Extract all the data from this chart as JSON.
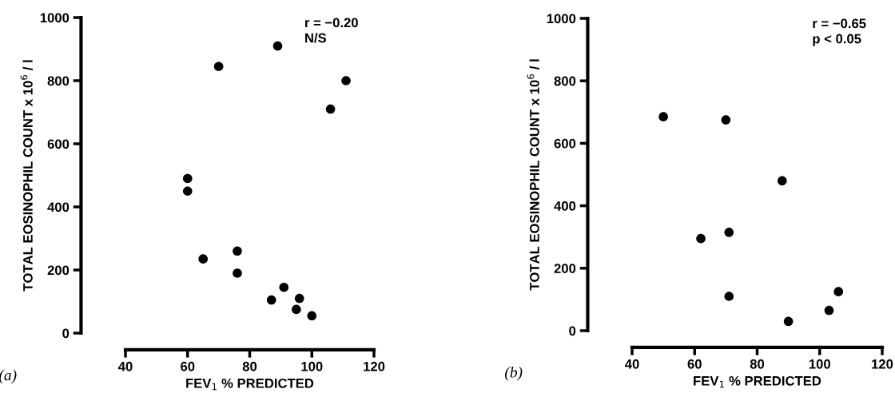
{
  "chart_data": [
    {
      "type": "scatter",
      "title": "(a)",
      "xlabel": "FEV$_{1}$ % PREDICTED",
      "ylabel": "TOTAL EOSINOPHIL COUNT x 10$^{6}$ / l",
      "annotations": [
        "r = −0.20\nN/S"
      ],
      "series": [
        {
          "color": "#000000",
          "x": [
            89,
            70,
            111,
            106,
            60,
            60,
            65,
            76,
            76,
            91,
            87,
            96,
            95,
            100
          ],
          "values": [
            910,
            845,
            800,
            710,
            490,
            450,
            235,
            260,
            190,
            145,
            105,
            110,
            75,
            55
          ]
        }
      ],
      "xlim": [
        40,
        120
      ],
      "xticks": [
        40,
        60,
        80,
        100,
        120
      ],
      "ylim": [
        0,
        1000
      ],
      "yticks": [
        0,
        200,
        400,
        600,
        800,
        1000
      ],
      "marker": "circle",
      "grid": false,
      "legend": false
    },
    {
      "type": "scatter",
      "title": "(b)",
      "xlabel": "FEV$_{1}$ % PREDICTED",
      "ylabel": "TOTAL EOSINOPHIL COUNT x 10$^{6}$ / l",
      "annotations": [
        "r = −0.65\np < 0.05"
      ],
      "series": [
        {
          "color": "#000000",
          "x": [
            50,
            70,
            88,
            62,
            71,
            71,
            90,
            103,
            106
          ],
          "values": [
            685,
            675,
            480,
            295,
            315,
            110,
            30,
            65,
            125
          ]
        }
      ],
      "xlim": [
        40,
        120
      ],
      "xticks": [
        40,
        60,
        80,
        100,
        120
      ],
      "ylim": [
        0,
        1000
      ],
      "yticks": [
        0,
        200,
        400,
        600,
        800,
        1000
      ],
      "marker": "circle",
      "grid": false,
      "legend": false
    }
  ]
}
